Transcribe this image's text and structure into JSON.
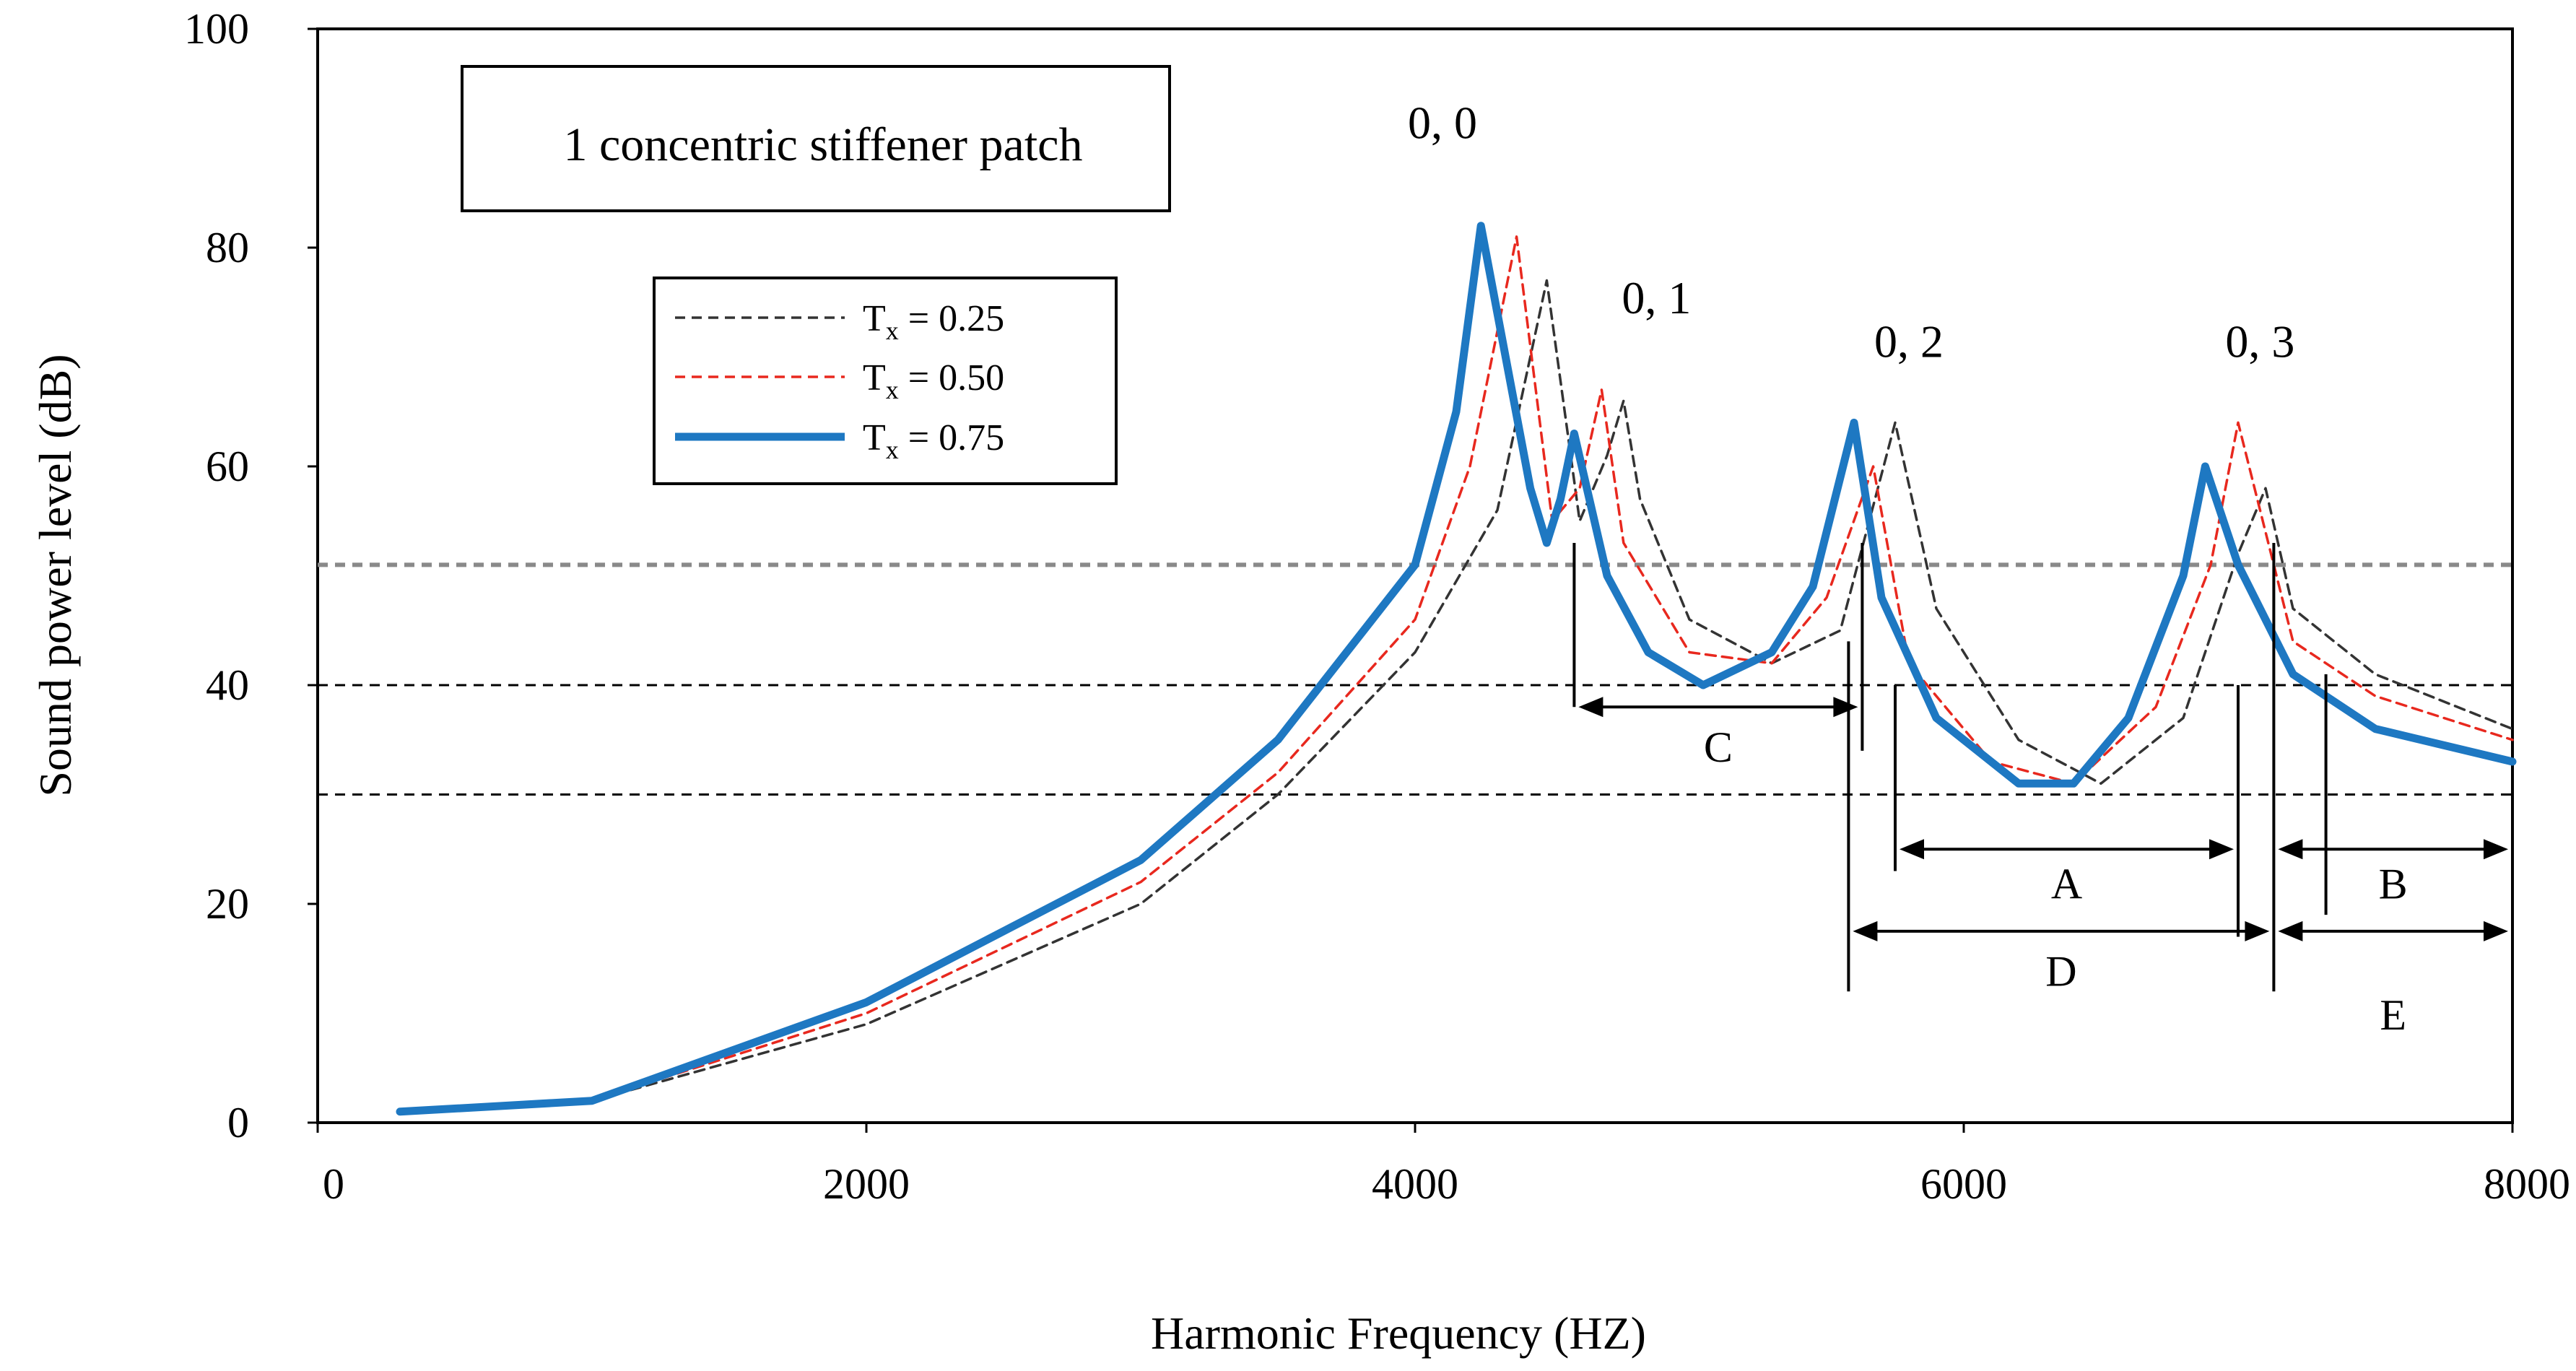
{
  "chart_data": {
    "type": "line",
    "title": "1 concentric stiffener patch",
    "xlabel": "Harmonic Frequency (HZ)",
    "ylabel": "Sound power level (dB)",
    "xlim": [
      0,
      8000
    ],
    "ylim": [
      0,
      100
    ],
    "x_ticks": [
      0,
      2000,
      4000,
      6000,
      8000
    ],
    "x_tick_labels": [
      "0",
      "2000",
      "4000",
      "6000",
      "8000"
    ],
    "y_ticks": [
      0,
      20,
      40,
      60,
      80,
      100
    ],
    "y_tick_labels": [
      "0",
      "20",
      "40",
      "60",
      "80",
      "100"
    ],
    "legend": {
      "position": "upper-left"
    },
    "series": [
      {
        "name": "T_x = 0.25",
        "label_main": "T",
        "label_sub": "x",
        "label_value": " = 0.25",
        "color": "#333333",
        "style": "dashed",
        "x": [
          300,
          1000,
          2000,
          3000,
          3500,
          4000,
          4300,
          4480,
          4600,
          4700,
          4760,
          4820,
          5000,
          5300,
          5550,
          5750,
          5900,
          6200,
          6500,
          6800,
          7000,
          7100,
          7200,
          7500,
          8000
        ],
        "y": [
          1,
          2,
          9,
          20,
          30,
          43,
          56,
          77,
          55,
          61,
          66,
          57,
          46,
          42,
          45,
          64,
          47,
          35,
          31,
          37,
          52,
          58,
          47,
          41,
          36
        ]
      },
      {
        "name": "T_x = 0.50",
        "label_main": "T",
        "label_sub": "x",
        "label_value": " = 0.50",
        "color": "#e8281e",
        "style": "dashed",
        "x": [
          300,
          1000,
          2000,
          3000,
          3500,
          4000,
          4200,
          4370,
          4500,
          4600,
          4680,
          4760,
          5000,
          5300,
          5500,
          5670,
          5800,
          6100,
          6400,
          6700,
          6900,
          7000,
          7200,
          7500,
          8000
        ],
        "y": [
          1,
          2,
          10,
          22,
          32,
          46,
          60,
          81,
          55,
          58,
          67,
          53,
          43,
          42,
          48,
          60,
          42,
          33,
          31,
          38,
          51,
          64,
          44,
          39,
          35
        ]
      },
      {
        "name": "T_x = 0.75",
        "label_main": "T",
        "label_sub": "x",
        "label_value": " = 0.75",
        "color": "#1e78c2",
        "style": "solid",
        "x": [
          300,
          1000,
          2000,
          3000,
          3500,
          4000,
          4150,
          4240,
          4330,
          4420,
          4480,
          4530,
          4580,
          4700,
          4850,
          5050,
          5300,
          5450,
          5600,
          5700,
          5900,
          6200,
          6400,
          6600,
          6800,
          6880,
          7000,
          7200,
          7500,
          8000
        ],
        "y": [
          1,
          2,
          11,
          24,
          35,
          51,
          65,
          82,
          70,
          58,
          53,
          57,
          63,
          50,
          43,
          40,
          43,
          49,
          64,
          48,
          37,
          31,
          31,
          37,
          50,
          60,
          51,
          41,
          36,
          33
        ]
      }
    ],
    "reference_lines": [
      {
        "y": 51,
        "color": "#8a8a8a",
        "style": "dashed"
      },
      {
        "y": 40,
        "color": "#000000",
        "style": "dashed"
      },
      {
        "y": 30,
        "color": "#000000",
        "style": "dashed"
      }
    ],
    "peak_annotations": [
      {
        "text": "0, 0",
        "x": 4100,
        "y": 90
      },
      {
        "text": "0, 1",
        "x": 4880,
        "y": 74
      },
      {
        "text": "0, 2",
        "x": 5800,
        "y": 70
      },
      {
        "text": "0, 3",
        "x": 7080,
        "y": 70
      }
    ],
    "regions": [
      {
        "label": "C",
        "x_start": 4580,
        "x_end": 5630,
        "y": 38,
        "label_y": 33
      },
      {
        "label": "A",
        "x_start": 5750,
        "x_end": 7000,
        "y": 25,
        "label_y": 20.5
      },
      {
        "label": "B",
        "x_start": 7130,
        "x_end": 8000,
        "y": 25,
        "label_y": 20.5
      },
      {
        "label": "D",
        "x_start": 5580,
        "x_end": 7130,
        "y": 17.5,
        "label_y": 12.5
      },
      {
        "label": "E",
        "x_start": 7130,
        "x_end": 8000,
        "y": 17.5,
        "label_y": 8.5
      }
    ],
    "region_boundaries": [
      {
        "x": 4580,
        "y_top": 53,
        "y_bottom": 38
      },
      {
        "x": 5630,
        "y_top": 53,
        "y_bottom": 34
      },
      {
        "x": 5750,
        "y_top": 40,
        "y_bottom": 23
      },
      {
        "x": 5580,
        "y_top": 44,
        "y_bottom": 12
      },
      {
        "x": 7000,
        "y_top": 40,
        "y_bottom": 17
      },
      {
        "x": 7130,
        "y_top": 53,
        "y_bottom": 12
      },
      {
        "x": 7320,
        "y_top": 41,
        "y_bottom": 19
      }
    ]
  }
}
